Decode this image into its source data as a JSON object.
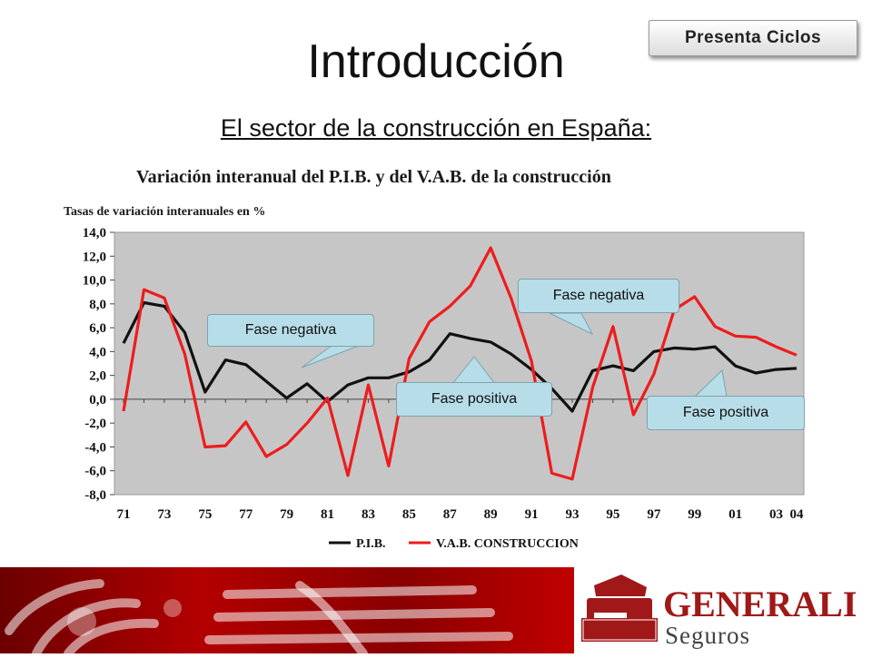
{
  "slide": {
    "title": "Introducción",
    "subtitle": "El sector de la construcción en España:",
    "button_label": "Presenta Ciclos"
  },
  "callouts": [
    "Fase negativa",
    "Fase positiva",
    "Fase negativa",
    "Fase positiva"
  ],
  "chart_data": {
    "type": "line",
    "title": "Variación interanual del P.I.B. y del V.A.B. de la construcción",
    "ylabel": "Tasas de variación interanuales en %",
    "xlabel": "",
    "ylim": [
      -8.0,
      14.0
    ],
    "yticks": [
      "14,0",
      "12,0",
      "10,0",
      "8,0",
      "6,0",
      "4,0",
      "2,0",
      "0,0",
      "-2,0",
      "-4,0",
      "-6,0",
      "-8,0"
    ],
    "ytick_values": [
      14,
      12,
      10,
      8,
      6,
      4,
      2,
      0,
      -2,
      -4,
      -6,
      -8
    ],
    "x": [
      1971,
      1972,
      1973,
      1974,
      1975,
      1976,
      1977,
      1978,
      1979,
      1980,
      1981,
      1982,
      1983,
      1984,
      1985,
      1986,
      1987,
      1988,
      1989,
      1990,
      1991,
      1992,
      1993,
      1994,
      1995,
      1996,
      1997,
      1998,
      1999,
      2000,
      2001,
      2002,
      2003,
      2004
    ],
    "xticks": [
      "71",
      "73",
      "75",
      "77",
      "79",
      "81",
      "83",
      "85",
      "87",
      "89",
      "91",
      "93",
      "95",
      "97",
      "99",
      "01",
      "03",
      "04"
    ],
    "xtick_values": [
      1971,
      1973,
      1975,
      1977,
      1979,
      1981,
      1983,
      1985,
      1987,
      1989,
      1991,
      1993,
      1995,
      1997,
      1999,
      2001,
      2003,
      2004
    ],
    "grid": false,
    "legend_position": "bottom",
    "series": [
      {
        "name": "P.I.B.",
        "color": "#111111",
        "values": [
          4.7,
          8.1,
          7.8,
          5.6,
          0.6,
          3.3,
          2.9,
          1.5,
          0.1,
          1.3,
          -0.2,
          1.2,
          1.8,
          1.8,
          2.3,
          3.3,
          5.5,
          5.1,
          4.8,
          3.8,
          2.5,
          0.9,
          -1.0,
          2.4,
          2.8,
          2.4,
          4.0,
          4.3,
          4.2,
          4.4,
          2.8,
          2.2,
          2.5,
          2.6
        ]
      },
      {
        "name": "V.A.B. CONSTRUCCION",
        "color": "#ee1c1c",
        "values": [
          -1.0,
          9.2,
          8.5,
          3.8,
          -4.0,
          -3.9,
          -1.9,
          -4.8,
          -3.8,
          -2.0,
          0.1,
          -6.4,
          1.2,
          -5.6,
          3.4,
          6.5,
          7.8,
          9.5,
          12.7,
          8.5,
          3.2,
          -6.2,
          -6.7,
          1.0,
          6.1,
          -1.3,
          2.1,
          7.5,
          8.6,
          6.1,
          5.3,
          5.2,
          4.4,
          3.7
        ]
      }
    ]
  }
}
